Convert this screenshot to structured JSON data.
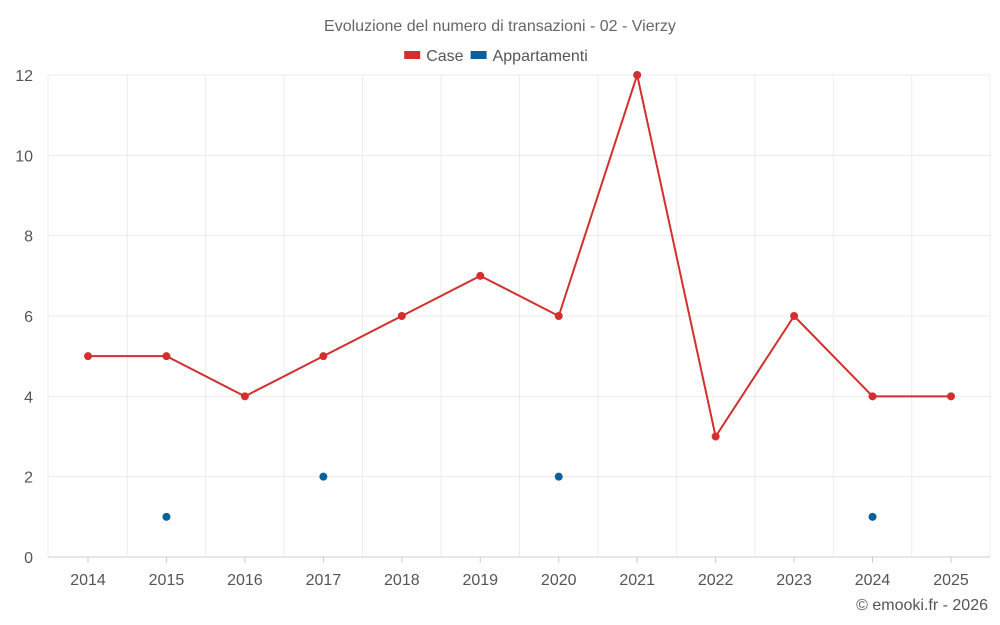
{
  "chart_data": {
    "type": "line",
    "title": "Evoluzione del numero di transazioni - 02 - Vierzy",
    "categories": [
      "2014",
      "2015",
      "2016",
      "2017",
      "2018",
      "2019",
      "2020",
      "2021",
      "2022",
      "2023",
      "2024",
      "2025"
    ],
    "series": [
      {
        "name": "Case",
        "color": "#d32f2f",
        "mode": "line",
        "values": [
          5,
          5,
          4,
          5,
          6,
          7,
          6,
          12,
          3,
          6,
          4,
          4
        ]
      },
      {
        "name": "Appartamenti",
        "color": "#0b5f9b",
        "mode": "points",
        "values": [
          null,
          1,
          null,
          2,
          null,
          null,
          2,
          null,
          null,
          null,
          1,
          null
        ]
      }
    ],
    "ylim": [
      0,
      12
    ],
    "yticks": [
      0,
      2,
      4,
      6,
      8,
      10,
      12
    ],
    "grid": true,
    "legend_position": "top-center",
    "credit": "© emooki.fr - 2026"
  }
}
